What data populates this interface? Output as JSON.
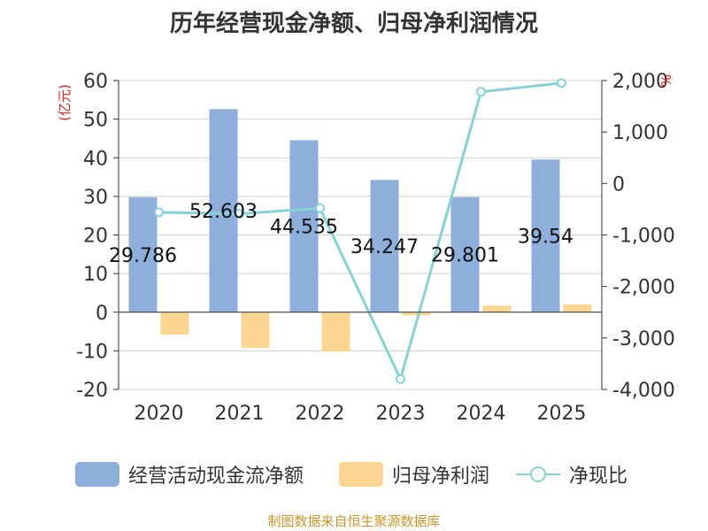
{
  "chart_data": {
    "type": "bar+line",
    "title": "历年经营现金净额、归母净利润情况",
    "categories": [
      "2020",
      "2021",
      "2022",
      "2023",
      "2024",
      "2025"
    ],
    "y_left": {
      "label": "(亿元)",
      "ylim": [
        -20,
        60
      ],
      "ticks": [
        "60",
        "50",
        "40",
        "30",
        "20",
        "10",
        "0",
        "-10",
        "-20"
      ]
    },
    "y_right": {
      "label": "%",
      "ylim": [
        -4000,
        2000
      ],
      "ticks": [
        "2,000",
        "1,000",
        "0",
        "-1,000",
        "-2,000",
        "-3,000",
        "-4,000"
      ]
    },
    "series": [
      {
        "name": "经营活动现金流净额",
        "kind": "bar",
        "axis": "left",
        "color": "#8eaedb",
        "values": [
          29.786,
          52.603,
          44.535,
          34.247,
          29.801,
          39.54
        ],
        "labels": [
          "29.786",
          "52.603",
          "44.535",
          "34.247",
          "29.801",
          "39.54"
        ]
      },
      {
        "name": "归母净利润",
        "kind": "bar",
        "axis": "left",
        "color": "#fdd694",
        "values": [
          -5.8,
          -9.3,
          -10.2,
          -0.8,
          1.7,
          2.0
        ]
      },
      {
        "name": "净现比",
        "kind": "line",
        "axis": "right",
        "color": "#86d2d7",
        "values": [
          -560,
          -590,
          -480,
          -3800,
          1780,
          1950
        ]
      }
    ]
  },
  "legend": [
    "经营活动现金流净额",
    "归母净利润",
    "净现比"
  ],
  "source": "制图数据来自恒生聚源数据库"
}
